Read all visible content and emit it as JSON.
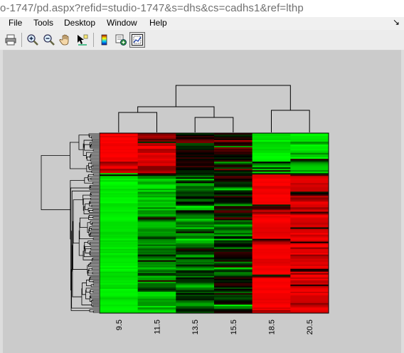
{
  "browser": {
    "url_text": "o-1747/pd.aspx?refid=studio-1747&s=dhs&cs=cadhs1&ref=lthp"
  },
  "menu": {
    "items": [
      "File",
      "Tools",
      "Desktop",
      "Window",
      "Help"
    ],
    "dock_arrow": "↘"
  },
  "toolbar": {
    "buttons": [
      {
        "icon": "print-icon"
      },
      {
        "icon": "zoom-in-icon"
      },
      {
        "icon": "zoom-out-icon"
      },
      {
        "icon": "pan-hand-icon"
      },
      {
        "icon": "data-cursor-icon"
      },
      {
        "icon": "colorbar-icon"
      },
      {
        "icon": "link-plot-icon"
      },
      {
        "icon": "plot-tools-icon"
      }
    ]
  },
  "colors": {
    "figure_bg": "#cbcbcb",
    "high": "#ff0000",
    "low": "#00ff00",
    "mid": "#000000"
  },
  "chart_data": {
    "type": "heatmap",
    "columns": [
      "9.5",
      "11.5",
      "13.5",
      "15.5",
      "18.5",
      "20.5"
    ],
    "color_scale": [
      "green",
      "black",
      "red"
    ],
    "row_dendrogram": true,
    "column_dendrogram": true,
    "column_clusters": [
      [
        "9.5",
        "11.5"
      ],
      [
        "13.5",
        "15.5"
      ],
      [
        "18.5",
        "20.5"
      ]
    ]
  }
}
